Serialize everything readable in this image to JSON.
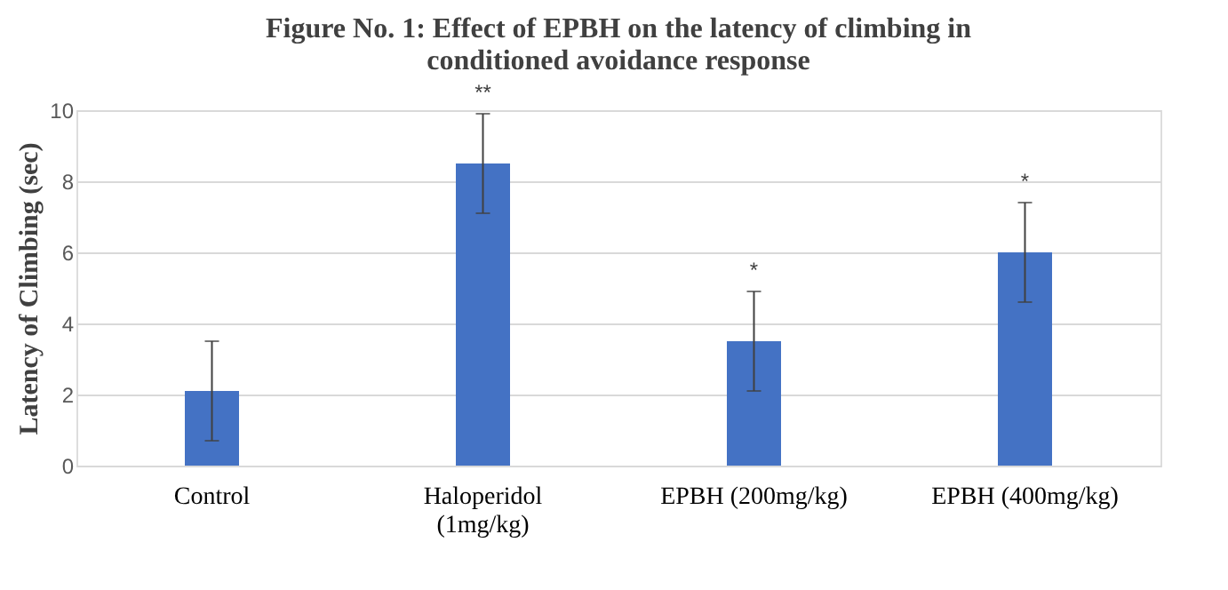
{
  "chart_data": {
    "type": "bar",
    "title": "Figure No. 1: Effect of EPBH on the latency of climbing in\nconditioned avoidance response",
    "ylabel": "Latency of Climbing (sec)",
    "categories": [
      "Control",
      "Haloperidol\n(1mg/kg)",
      "EPBH (200mg/kg)",
      "EPBH (400mg/kg)"
    ],
    "values": [
      2.1,
      8.5,
      3.5,
      6.0
    ],
    "errors": [
      1.4,
      1.4,
      1.4,
      1.4
    ],
    "color": "#4472c4",
    "value_labels": [
      null,
      "**",
      "*",
      "*"
    ],
    "ylim": [
      0,
      10
    ],
    "yticks": [
      0,
      2,
      4,
      6,
      8,
      10
    ],
    "grid": "y"
  }
}
